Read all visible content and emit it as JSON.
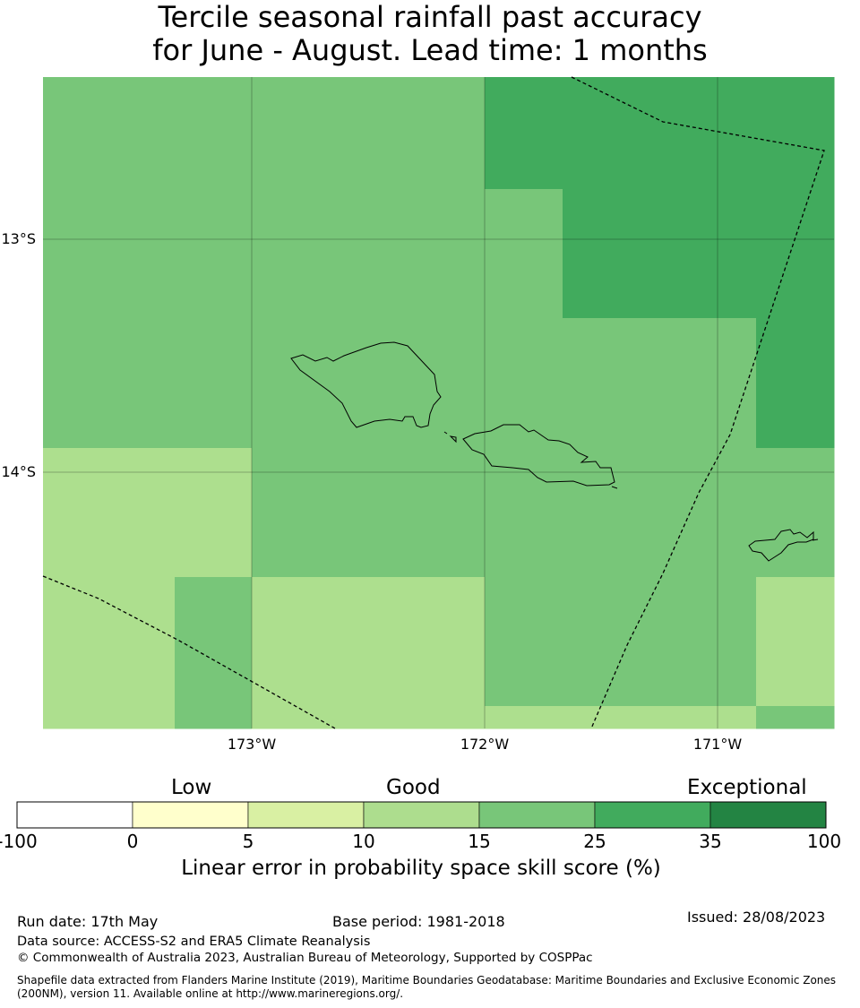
{
  "title": {
    "line1": "Tercile seasonal rainfall past accuracy",
    "line2": "for June - August. Lead time: 1 months"
  },
  "map": {
    "lat_labels": [
      "13°S",
      "14°S"
    ],
    "lon_labels": [
      "173°W",
      "172°W",
      "171°W"
    ],
    "grid": [
      [
        "25",
        "25",
        "25",
        "25",
        "35",
        "35",
        "35",
        "35"
      ],
      [
        "25",
        "25",
        "25",
        "25",
        "25",
        "35",
        "35",
        "35"
      ],
      [
        "25",
        "25",
        "25",
        "25",
        "25",
        "25",
        "25",
        "35"
      ],
      [
        "15",
        "15",
        "25",
        "25",
        "25",
        "25",
        "25",
        "25"
      ],
      [
        "15",
        "25",
        "15",
        "15",
        "25",
        "25",
        "25",
        "15"
      ],
      [
        "15",
        "25",
        "15",
        "15",
        "15",
        "15",
        "15",
        "25"
      ]
    ],
    "colors": {
      "15": "#addf8e",
      "25": "#78c679",
      "35": "#41ab5d"
    },
    "features": [
      "island-savaii",
      "island-upolu",
      "island-tutuila",
      "eez-boundary-west",
      "eez-boundary-east"
    ]
  },
  "colorbar": {
    "categories": [
      "Low",
      "Good",
      "Exceptional"
    ],
    "ticks": [
      "-100",
      "0",
      "5",
      "10",
      "15",
      "25",
      "35",
      "100"
    ],
    "colors": [
      "#ffffff",
      "#ffffcc",
      "#d9f0a3",
      "#addd8e",
      "#78c679",
      "#41ab5d",
      "#238443"
    ],
    "label": "Linear error in probability space skill score (%)"
  },
  "footer": {
    "run_date": "Run date: 17th May",
    "base_period": "Base period: 1981-2018",
    "issued": "Issued: 28/08/2023",
    "data_source": "Data source: ACCESS-S2 and ERA5 Climate Reanalysis",
    "copyright": "© Commonwealth of Australia 2023, Australian Bureau of Meteorology, Supported by COSPPac",
    "shapefile": "Shapefile data extracted from Flanders Marine Institute (2019), Maritime Boundaries Geodatabase: Maritime Boundaries and Exclusive Economic Zones (200NM), version 11. Available online at http://www.marineregions.org/."
  }
}
